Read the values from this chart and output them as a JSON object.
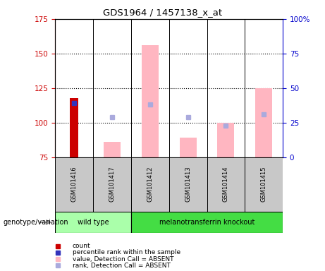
{
  "title": "GDS1964 / 1457138_x_at",
  "samples": [
    "GSM101416",
    "GSM101417",
    "GSM101412",
    "GSM101413",
    "GSM101414",
    "GSM101415"
  ],
  "ylim_left": [
    75,
    175
  ],
  "ylim_right": [
    0,
    100
  ],
  "yticks_left": [
    75,
    100,
    125,
    150,
    175
  ],
  "yticks_right": [
    0,
    25,
    50,
    75,
    100
  ],
  "ytick_labels_right": [
    "0",
    "25",
    "50",
    "75",
    "100%"
  ],
  "bar_bottom": 75,
  "red_bars": {
    "GSM101416": 118
  },
  "blue_squares": {
    "GSM101416": 114
  },
  "pink_bars": {
    "GSM101417": 86,
    "GSM101412": 156,
    "GSM101413": 89,
    "GSM101414": 100,
    "GSM101415": 125
  },
  "lavender_squares": {
    "GSM101417": 104,
    "GSM101412": 113,
    "GSM101413": 104,
    "GSM101414": 98,
    "GSM101415": 106
  },
  "colors": {
    "red_bar": "#CC0000",
    "blue_square": "#3333BB",
    "pink_bar": "#FFB6C1",
    "lavender_square": "#AAAADD",
    "left_axis": "#CC0000",
    "right_axis": "#0000CC",
    "sample_box": "#C8C8C8",
    "wt_box": "#AAFFAA",
    "mk_box": "#44DD44"
  },
  "wt_samples": [
    0,
    1
  ],
  "mk_samples": [
    2,
    3,
    4,
    5
  ],
  "wt_label": "wild type",
  "mk_label": "melanotransferrin knockout",
  "group_label": "genotype/variation",
  "legend_items": [
    {
      "label": "count",
      "color": "#CC0000"
    },
    {
      "label": "percentile rank within the sample",
      "color": "#3333BB"
    },
    {
      "label": "value, Detection Call = ABSENT",
      "color": "#FFB6C1"
    },
    {
      "label": "rank, Detection Call = ABSENT",
      "color": "#AAAADD"
    }
  ]
}
